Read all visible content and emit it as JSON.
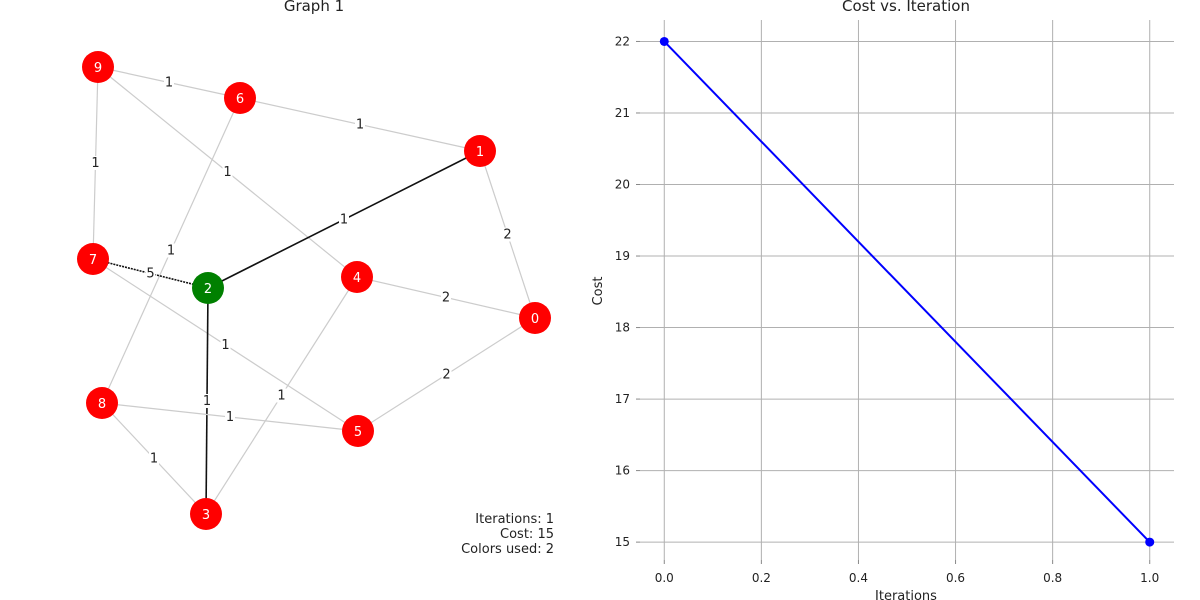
{
  "graph_panel": {
    "title": "Graph 1",
    "info_lines": [
      "Iterations: 1",
      "Cost: 15",
      "Colors used: 2"
    ],
    "nodes": [
      {
        "id": "0",
        "color": "#ff0000"
      },
      {
        "id": "1",
        "color": "#ff0000"
      },
      {
        "id": "2",
        "color": "#008000"
      },
      {
        "id": "3",
        "color": "#ff0000"
      },
      {
        "id": "4",
        "color": "#ff0000"
      },
      {
        "id": "5",
        "color": "#ff0000"
      },
      {
        "id": "6",
        "color": "#ff0000"
      },
      {
        "id": "7",
        "color": "#ff0000"
      },
      {
        "id": "8",
        "color": "#ff0000"
      },
      {
        "id": "9",
        "color": "#ff0000"
      }
    ],
    "edges": [
      {
        "source": "9",
        "target": "6",
        "weight": "1"
      },
      {
        "source": "9",
        "target": "7",
        "weight": "1"
      },
      {
        "source": "9",
        "target": "4",
        "weight": "1"
      },
      {
        "source": "6",
        "target": "1",
        "weight": "1"
      },
      {
        "source": "6",
        "target": "8",
        "weight": "1"
      },
      {
        "source": "1",
        "target": "2",
        "weight": "1",
        "highlight": true
      },
      {
        "source": "1",
        "target": "0",
        "weight": "2"
      },
      {
        "source": "7",
        "target": "2",
        "weight": "5",
        "highlight": true
      },
      {
        "source": "7",
        "target": "5",
        "weight": "1"
      },
      {
        "source": "2",
        "target": "3",
        "weight": "1",
        "highlight": true
      },
      {
        "source": "4",
        "target": "0",
        "weight": "2"
      },
      {
        "source": "4",
        "target": "3",
        "weight": "1"
      },
      {
        "source": "0",
        "target": "5",
        "weight": "2"
      },
      {
        "source": "8",
        "target": "5",
        "weight": "1"
      },
      {
        "source": "8",
        "target": "3",
        "weight": "1"
      }
    ]
  },
  "chart_data": {
    "type": "line",
    "title": "Cost vs. Iteration",
    "xlabel": "Iterations",
    "ylabel": "Cost",
    "x": [
      0,
      1
    ],
    "series": [
      {
        "values": [
          22,
          15
        ],
        "color": "#0000ff"
      }
    ],
    "xlim": [
      -0.05,
      1.05
    ],
    "ylim": [
      14.75,
      22.3
    ],
    "xticks": [
      "0.0",
      "0.2",
      "0.4",
      "0.6",
      "0.8",
      "1.0"
    ],
    "yticks": [
      "15",
      "16",
      "17",
      "18",
      "19",
      "20",
      "21",
      "22"
    ],
    "grid": true,
    "legend": "none"
  }
}
